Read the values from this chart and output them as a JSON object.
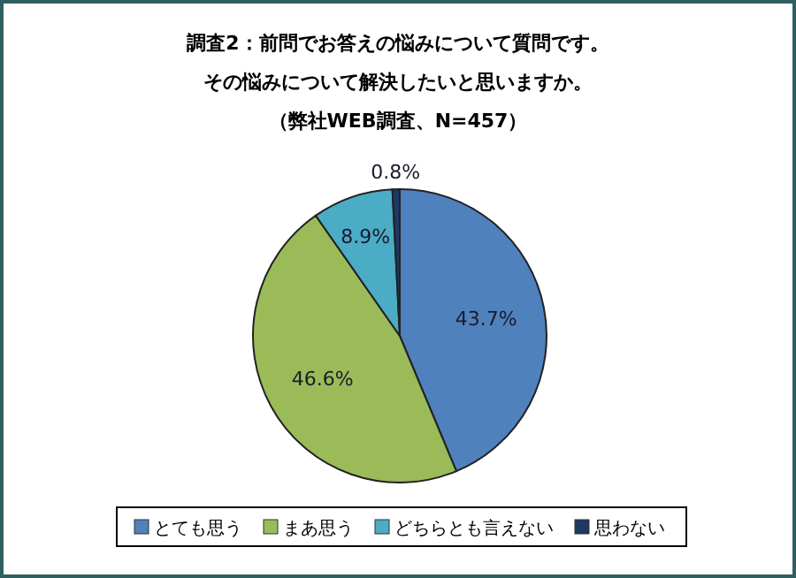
{
  "chart_data": {
    "type": "pie",
    "title": "調査2：前問でお答えの悩みについて質問です。",
    "subtitle": "その悩みについて解決したいと思いますか。",
    "annotations": [
      "（弊社WEB調査、N=457）"
    ],
    "categories": [
      "とても思う",
      "まあ思う",
      "どちらとも言えない",
      "思わない"
    ],
    "values": [
      43.7,
      46.6,
      8.9,
      0.8
    ],
    "colors": [
      "#4f81bd",
      "#9bbb59",
      "#4bacc6",
      "#1f3864"
    ],
    "value_labels": [
      "43.7%",
      "46.6%",
      "8.9%",
      "0.8%"
    ],
    "legend": "bottom"
  }
}
